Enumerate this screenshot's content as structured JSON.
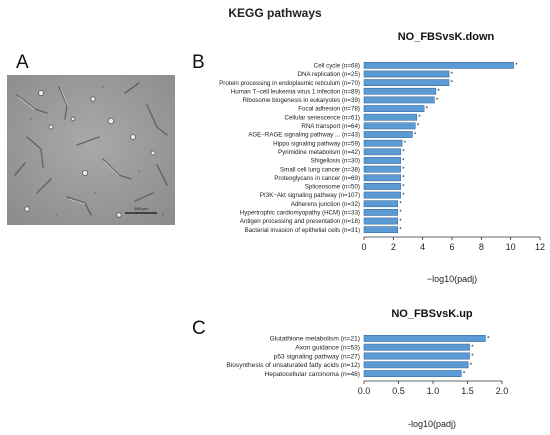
{
  "figure": {
    "title": "KEGG pathways",
    "panel_a_label": "A",
    "panel_b_label": "B",
    "panel_c_label": "C",
    "scale_bar_label": "500 µm",
    "bar_color": "#5b9bd5",
    "bar_edge_color": "#2f5f8f"
  },
  "chart_data": [
    {
      "type": "bar",
      "orientation": "horizontal",
      "title": "NO_FBSvsK.down",
      "xlabel": "−log10(padj)",
      "xlim": [
        0,
        12
      ],
      "xticks": [
        "0",
        "2",
        "4",
        "6",
        "8",
        "10",
        "12"
      ],
      "categories": [
        "Cell cycle (n=68)",
        "DNA replication (n=25)",
        "Protein processing in endoplasmic reticulum (n=70)",
        "Human T−cell leukemia virus 1 infection (n=89)",
        "Ribosome biogenesis in eukaryotes (n=39)",
        "Focal adhesion (n=78)",
        "Cellular senescence (n=61)",
        "RNA transport (n=64)",
        "AGE−RAGE signaling pathway ... (n=43)",
        "Hippo signaling pathway (n=59)",
        "Pyrimidine metabolism (n=42)",
        "Shigellosis (n=30)",
        "Small cell lung cancer (n=38)",
        "Proteoglycans in cancer (n=69)",
        "Spliceosome (n=50)",
        "PI3K−Akt signaling pathway (n=107)",
        "Adherens junction (n=32)",
        "Hypertrophic cardiomyopathy (HCM) (n=33)",
        "Antigen processing and presentation (n=18)",
        "Bacterial invasion of epithelial cells (n=31)"
      ],
      "values": [
        10.2,
        5.8,
        5.8,
        4.9,
        4.8,
        4.1,
        3.6,
        3.5,
        3.3,
        2.6,
        2.5,
        2.5,
        2.5,
        2.5,
        2.5,
        2.5,
        2.3,
        2.3,
        2.3,
        2.3
      ],
      "star_marks": true,
      "grid": false
    },
    {
      "type": "bar",
      "orientation": "horizontal",
      "title": "NO_FBSvsK.up",
      "xlabel": "-log10(padj)",
      "xlim": [
        0,
        2.0
      ],
      "xticks": [
        "0.0",
        "0.5",
        "1.0",
        "1.5",
        "2.0"
      ],
      "categories": [
        "Glutathione metabolism (n=21)",
        "Axon guidance (n=53)",
        "p53 signaling pathway (n=27)",
        "Biosynthesis of unsaturated fatty acids (n=12)",
        "Hepatocellular carcinoma (n=48)"
      ],
      "values": [
        1.76,
        1.53,
        1.53,
        1.51,
        1.41
      ],
      "star_marks": true,
      "grid": false
    }
  ]
}
